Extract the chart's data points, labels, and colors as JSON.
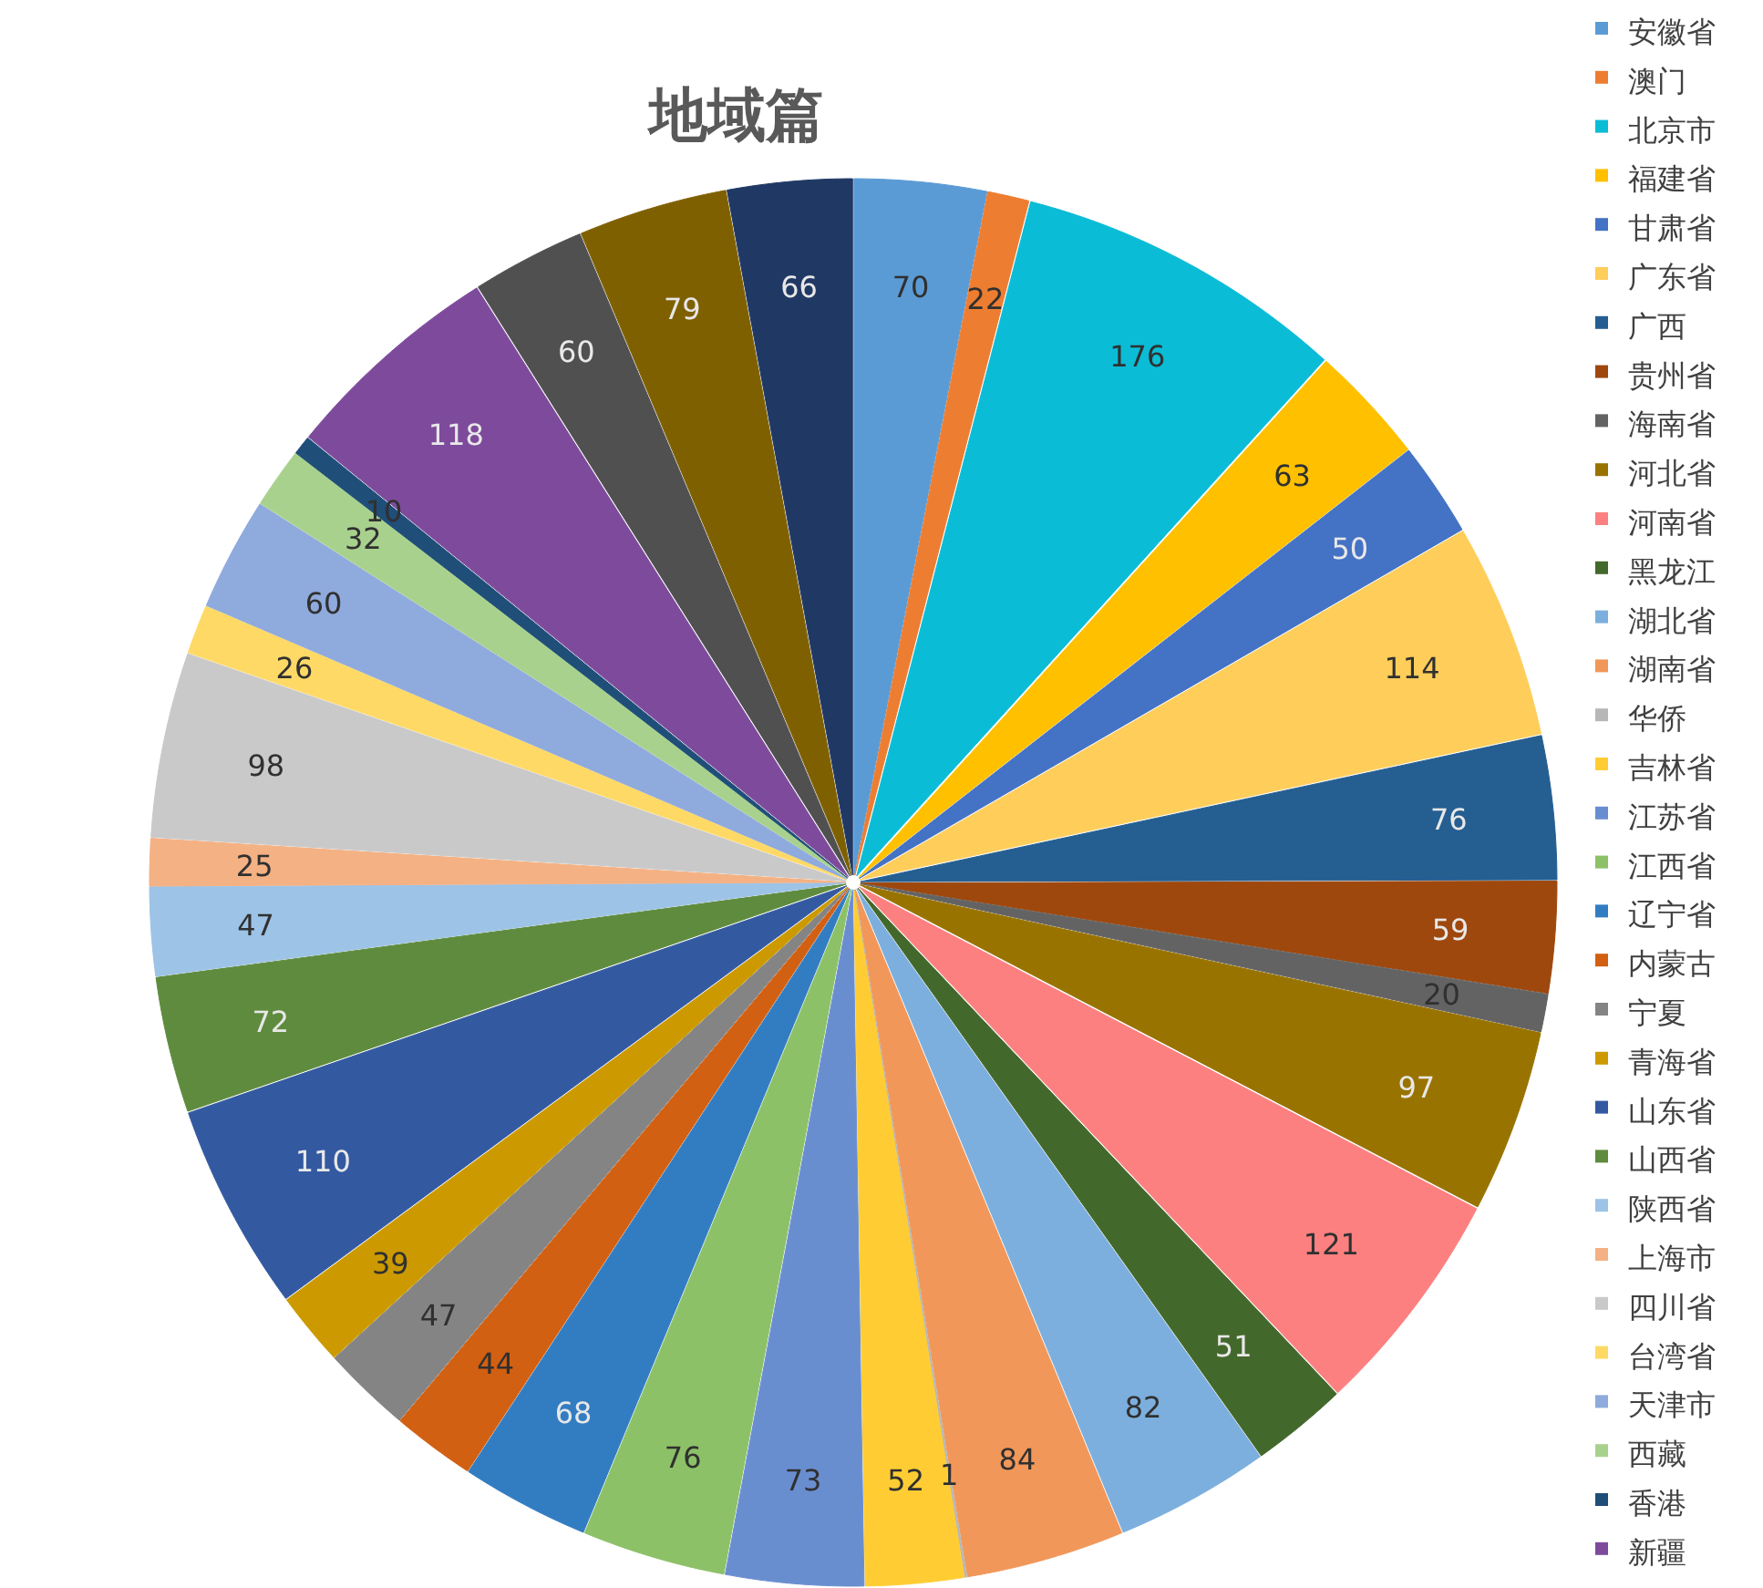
{
  "chart_data": {
    "type": "pie",
    "title": "地域篇",
    "data_labels": true,
    "legend": "right",
    "categories": [
      "安徽省",
      "澳门",
      "北京市",
      "福建省",
      "甘肃省",
      "广东省",
      "广西",
      "贵州省",
      "海南省",
      "河北省",
      "河南省",
      "黑龙江",
      "湖北省",
      "湖南省",
      "华侨",
      "吉林省",
      "江苏省",
      "江西省",
      "辽宁省",
      "内蒙古",
      "宁夏",
      "青海省",
      "山东省",
      "山西省",
      "陕西省",
      "上海市",
      "四川省",
      "台湾省",
      "天津市",
      "西藏",
      "香港",
      "新疆",
      null,
      null,
      null
    ],
    "values": [
      70,
      22,
      176,
      63,
      50,
      114,
      76,
      59,
      20,
      97,
      121,
      51,
      82,
      84,
      1,
      52,
      73,
      76,
      68,
      44,
      47,
      39,
      110,
      72,
      47,
      25,
      98,
      26,
      60,
      32,
      10,
      118,
      60,
      79,
      66
    ],
    "colors": [
      "#5b9bd5",
      "#ed7d31",
      "#0bbcd6",
      "#ffc000",
      "#4472c4",
      "#ffcd5a",
      "#255e91",
      "#9e480e",
      "#636363",
      "#997300",
      "#fd8080",
      "#43682b",
      "#7cafdd",
      "#f1975a",
      "#b7b7b7",
      "#ffcd33",
      "#698ed0",
      "#8cc168",
      "#327dc2",
      "#d26012",
      "#848484",
      "#cc9a00",
      "#335aa1",
      "#5f8b3e",
      "#9dc3e6",
      "#f4b183",
      "#c9c9c9",
      "#ffd966",
      "#8faadc",
      "#a9d18e",
      "#1f4e79",
      "#7e4b9c",
      "#505050",
      "#7f6000",
      "#203864"
    ]
  }
}
